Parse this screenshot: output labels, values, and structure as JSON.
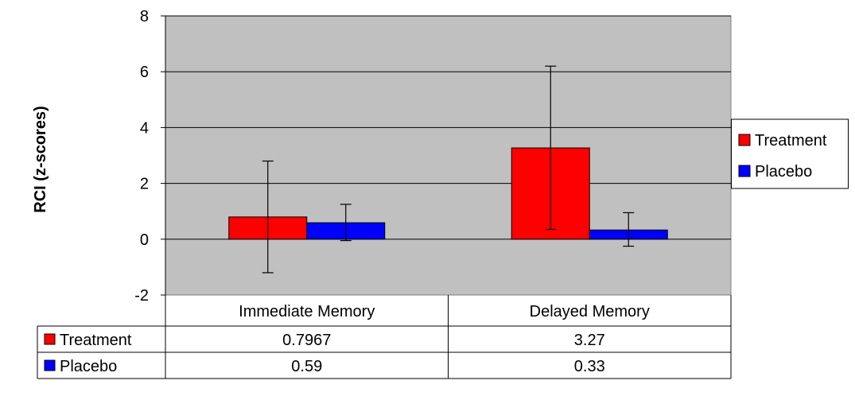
{
  "chart_data": {
    "type": "bar",
    "ylabel": "RCI (z-scores)",
    "ylim": [
      -2,
      8
    ],
    "yticks": [
      -2,
      0,
      2,
      4,
      6,
      8
    ],
    "categories": [
      "Immediate Memory",
      "Delayed Memory"
    ],
    "series": [
      {
        "name": "Treatment",
        "values": [
          0.7967,
          3.27
        ],
        "display": [
          "0.7967",
          "3.27"
        ],
        "error_low": [
          -1.2,
          0.35
        ],
        "error_high": [
          2.8,
          6.2
        ],
        "color": "#ff0000"
      },
      {
        "name": "Placebo",
        "values": [
          0.59,
          0.33
        ],
        "display": [
          "0.59",
          "0.33"
        ],
        "error_low": [
          -0.05,
          -0.25
        ],
        "error_high": [
          1.25,
          0.95
        ],
        "color": "#0000ff"
      }
    ],
    "plot_background": "#c0c0c0",
    "grid": true,
    "legend_position": "right",
    "data_table": true
  }
}
